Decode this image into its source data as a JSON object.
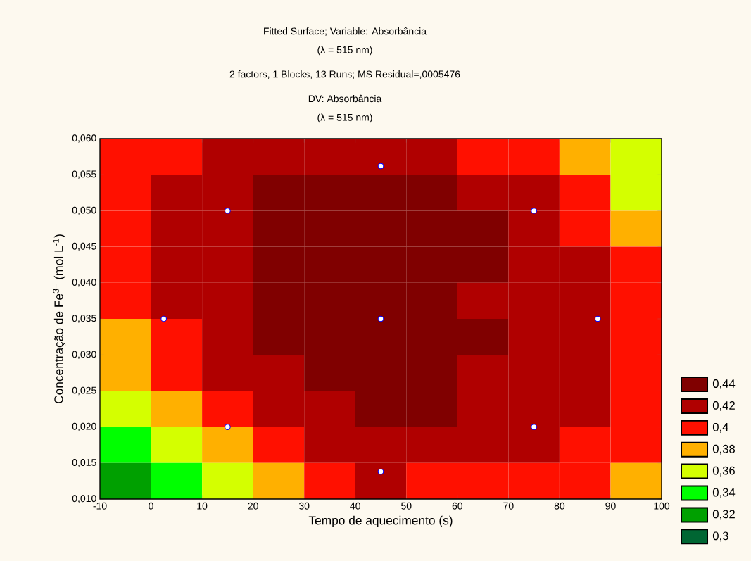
{
  "chart_data": {
    "type": "heatmap",
    "title": "Fitted Surface; Variable: Absorbância",
    "subtitle": "(λ = 515 nm)",
    "annotations": [
      "2 factors, 1 Blocks, 13 Runs; MS Residual=,0005476",
      "DV: Absorbância",
      "(λ = 515 nm)"
    ],
    "xlabel": "Tempo de aquecimento (s)",
    "ylabel": "Concentração de Fe$^{3+}$ (mol L$^{-1}$)",
    "xlim": [
      -10,
      100
    ],
    "ylim": [
      0.01,
      0.06
    ],
    "xticks": [
      -10,
      0,
      10,
      20,
      30,
      40,
      50,
      60,
      70,
      80,
      90,
      100
    ],
    "yticks": [
      {
        "value": 0.01,
        "label": "0,010"
      },
      {
        "value": 0.015,
        "label": "0,015"
      },
      {
        "value": 0.02,
        "label": "0,020"
      },
      {
        "value": 0.025,
        "label": "0,025"
      },
      {
        "value": 0.03,
        "label": "0,030"
      },
      {
        "value": 0.035,
        "label": "0,035"
      },
      {
        "value": 0.04,
        "label": "0,040"
      },
      {
        "value": 0.045,
        "label": "0,045"
      },
      {
        "value": 0.05,
        "label": "0,050"
      },
      {
        "value": 0.055,
        "label": "0,055"
      },
      {
        "value": 0.06,
        "label": "0,060"
      }
    ],
    "cells": [
      [
        0.4,
        0.4,
        0.42,
        0.42,
        0.42,
        0.42,
        0.42,
        0.4,
        0.4,
        0.38,
        0.36
      ],
      [
        0.4,
        0.42,
        0.42,
        0.44,
        0.44,
        0.44,
        0.44,
        0.42,
        0.42,
        0.4,
        0.36
      ],
      [
        0.4,
        0.42,
        0.42,
        0.44,
        0.44,
        0.44,
        0.44,
        0.44,
        0.42,
        0.4,
        0.38
      ],
      [
        0.4,
        0.42,
        0.42,
        0.44,
        0.44,
        0.44,
        0.44,
        0.44,
        0.42,
        0.42,
        0.4
      ],
      [
        0.4,
        0.42,
        0.42,
        0.44,
        0.44,
        0.44,
        0.44,
        0.42,
        0.42,
        0.42,
        0.4
      ],
      [
        0.38,
        0.4,
        0.42,
        0.44,
        0.44,
        0.44,
        0.44,
        0.44,
        0.42,
        0.42,
        0.4
      ],
      [
        0.38,
        0.4,
        0.42,
        0.42,
        0.44,
        0.44,
        0.44,
        0.42,
        0.42,
        0.42,
        0.4
      ],
      [
        0.36,
        0.38,
        0.4,
        0.42,
        0.42,
        0.44,
        0.44,
        0.42,
        0.42,
        0.42,
        0.4
      ],
      [
        0.34,
        0.36,
        0.38,
        0.4,
        0.42,
        0.42,
        0.42,
        0.42,
        0.42,
        0.4,
        0.4
      ],
      [
        0.32,
        0.34,
        0.36,
        0.38,
        0.4,
        0.42,
        0.4,
        0.4,
        0.4,
        0.4,
        0.38
      ]
    ],
    "cticks": [
      {
        "value": 0.44,
        "label": "0,44"
      },
      {
        "value": 0.42,
        "label": "0,42"
      },
      {
        "value": 0.4,
        "label": "0,4"
      },
      {
        "value": 0.38,
        "label": "0,38"
      },
      {
        "value": 0.36,
        "label": "0,36"
      },
      {
        "value": 0.34,
        "label": "0,34"
      },
      {
        "value": 0.32,
        "label": "0,32"
      },
      {
        "value": 0.3,
        "label": "0,3"
      }
    ],
    "colors": [
      "#800000",
      "#b00000",
      "#ff1000",
      "#ffb000",
      "#d4ff00",
      "#00ff00",
      "#00a000",
      "#006633"
    ],
    "series": [
      {
        "type": "scatter",
        "color": "#ffffff",
        "marker": "circle",
        "x": [
          15,
          15,
          75,
          75,
          2.5,
          87.5,
          45,
          45,
          45
        ],
        "values": [
          0.02,
          0.05,
          0.02,
          0.05,
          0.035,
          0.035,
          0.0138,
          0.0562,
          0.035
        ]
      }
    ]
  }
}
